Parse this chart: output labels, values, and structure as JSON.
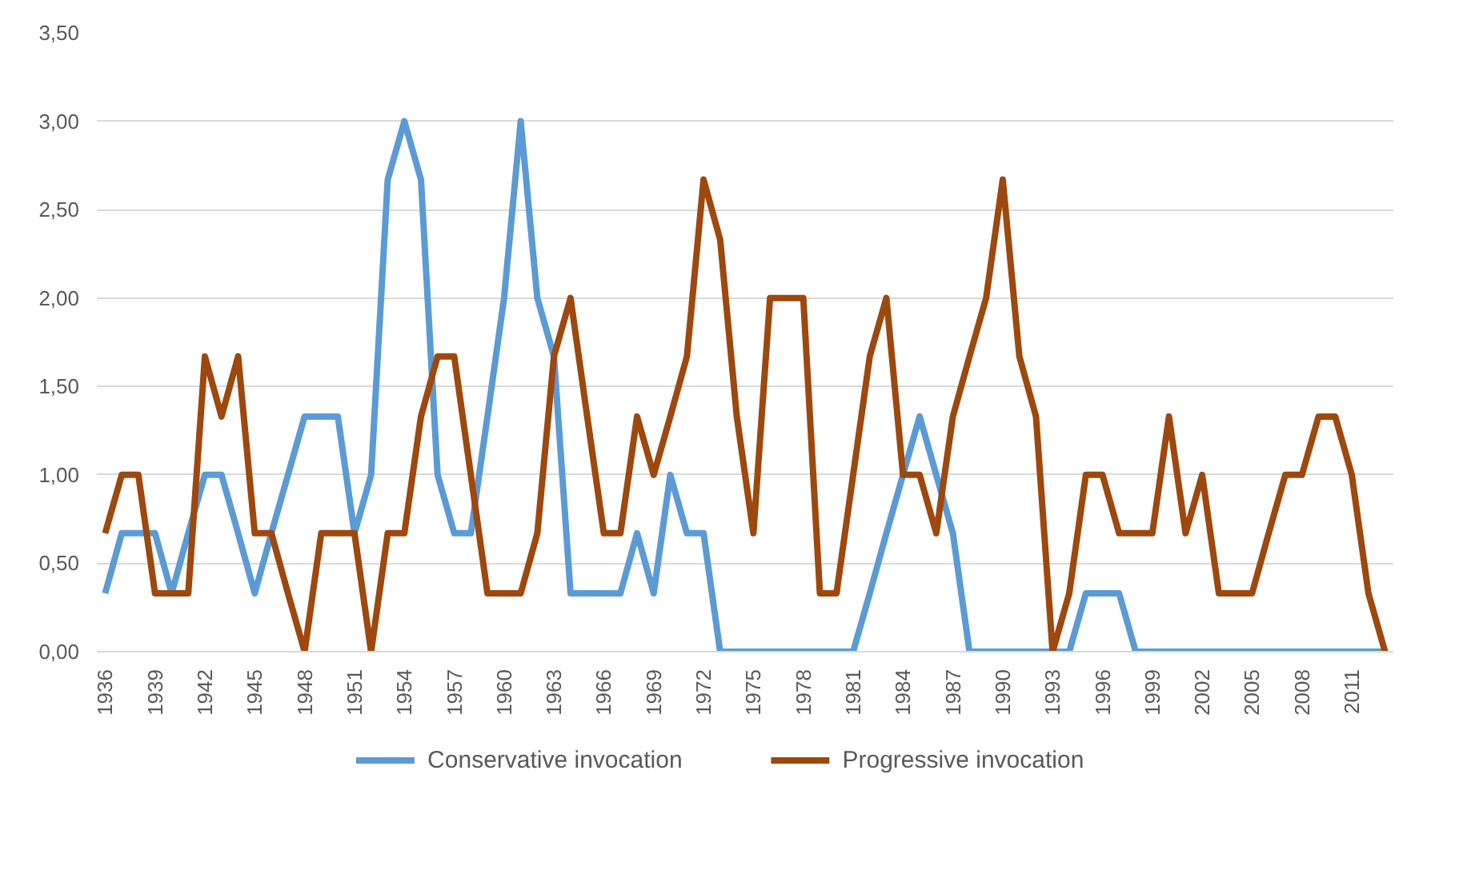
{
  "chart_data": {
    "type": "line",
    "x": [
      1936,
      1937,
      1938,
      1939,
      1940,
      1941,
      1942,
      1943,
      1944,
      1945,
      1946,
      1947,
      1948,
      1949,
      1950,
      1951,
      1952,
      1953,
      1954,
      1955,
      1956,
      1957,
      1958,
      1959,
      1960,
      1961,
      1962,
      1963,
      1964,
      1965,
      1966,
      1967,
      1968,
      1969,
      1970,
      1971,
      1972,
      1973,
      1974,
      1975,
      1976,
      1977,
      1978,
      1979,
      1980,
      1981,
      1982,
      1983,
      1984,
      1985,
      1986,
      1987,
      1988,
      1989,
      1990,
      1991,
      1992,
      1993,
      1994,
      1995,
      1996,
      1997,
      1998,
      1999,
      2000,
      2001,
      2002,
      2003,
      2004,
      2005,
      2006,
      2007,
      2008,
      2009,
      2010,
      2011,
      2012,
      2013
    ],
    "series": [
      {
        "name": "Conservative invocation",
        "color": "#5b9bd5",
        "values": [
          0.33,
          0.67,
          0.67,
          0.67,
          0.33,
          0.67,
          1.0,
          1.0,
          0.67,
          0.33,
          0.67,
          1.0,
          1.33,
          1.33,
          1.33,
          0.67,
          1.0,
          2.67,
          3.0,
          2.67,
          1.0,
          0.67,
          0.67,
          1.33,
          2.0,
          3.0,
          2.0,
          1.67,
          0.33,
          0.33,
          0.33,
          0.33,
          0.67,
          0.33,
          1.0,
          0.67,
          0.67,
          0,
          0,
          0,
          0,
          0,
          0,
          0,
          0,
          0,
          0.33,
          0.67,
          1.0,
          1.33,
          1.0,
          0.67,
          0,
          0,
          0,
          0,
          0,
          0,
          0,
          0.33,
          0.33,
          0.33,
          0,
          0,
          0,
          0,
          0,
          0,
          0,
          0,
          0,
          0,
          0,
          0,
          0,
          0,
          0,
          0
        ]
      },
      {
        "name": "Progressive invocation",
        "color": "#9e480e",
        "values": [
          0.67,
          1.0,
          1.0,
          0.33,
          0.33,
          0.33,
          1.67,
          1.33,
          1.67,
          0.67,
          0.67,
          0.33,
          0,
          0.67,
          0.67,
          0.67,
          0,
          0.67,
          0.67,
          1.33,
          1.67,
          1.67,
          1.0,
          0.33,
          0.33,
          0.33,
          0.67,
          1.67,
          2.0,
          1.33,
          0.67,
          0.67,
          1.33,
          1.0,
          1.33,
          1.67,
          2.67,
          2.33,
          1.33,
          0.67,
          2.0,
          2.0,
          2.0,
          0.33,
          0.33,
          1.0,
          1.67,
          2.0,
          1.0,
          1.0,
          0.67,
          1.33,
          1.67,
          2.0,
          2.67,
          1.67,
          1.33,
          0,
          0.33,
          1.0,
          1.0,
          0.67,
          0.67,
          0.67,
          1.33,
          0.67,
          1.0,
          0.33,
          0.33,
          0.33,
          0.67,
          1.0,
          1.0,
          1.33,
          1.33,
          1.0,
          0.33,
          0
        ]
      }
    ],
    "xlim": [
      1935.5,
      2013.5
    ],
    "xticks": [
      1936,
      1939,
      1942,
      1945,
      1948,
      1951,
      1954,
      1957,
      1960,
      1963,
      1966,
      1969,
      1972,
      1975,
      1978,
      1981,
      1984,
      1987,
      1990,
      1993,
      1996,
      1999,
      2002,
      2005,
      2008,
      2011
    ],
    "ylim": [
      0,
      3.5
    ],
    "yticks": [
      {
        "value": 0,
        "label": "0,00"
      },
      {
        "value": 0.5,
        "label": "0,50"
      },
      {
        "value": 1,
        "label": "1,00"
      },
      {
        "value": 1.5,
        "label": "1,50"
      },
      {
        "value": 2,
        "label": "2,00"
      },
      {
        "value": 2.5,
        "label": "2,50"
      },
      {
        "value": 3,
        "label": "3,00"
      },
      {
        "value": 3.5,
        "label": "3,50"
      }
    ],
    "grid": "y",
    "legend": "bottom"
  }
}
